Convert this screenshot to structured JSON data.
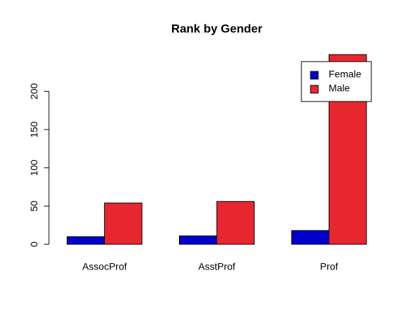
{
  "chart_data": {
    "type": "bar",
    "title": "Rank by Gender",
    "categories": [
      "AssocProf",
      "AsstProf",
      "Prof"
    ],
    "series": [
      {
        "name": "Female",
        "color": "#0000cc",
        "values": [
          10,
          11,
          18
        ]
      },
      {
        "name": "Male",
        "color": "#e8262f",
        "values": [
          54,
          56,
          248
        ]
      }
    ],
    "ylim": [
      0,
      248
    ],
    "yticks": [
      0,
      50,
      100,
      150,
      200
    ],
    "legend": "top-right"
  }
}
